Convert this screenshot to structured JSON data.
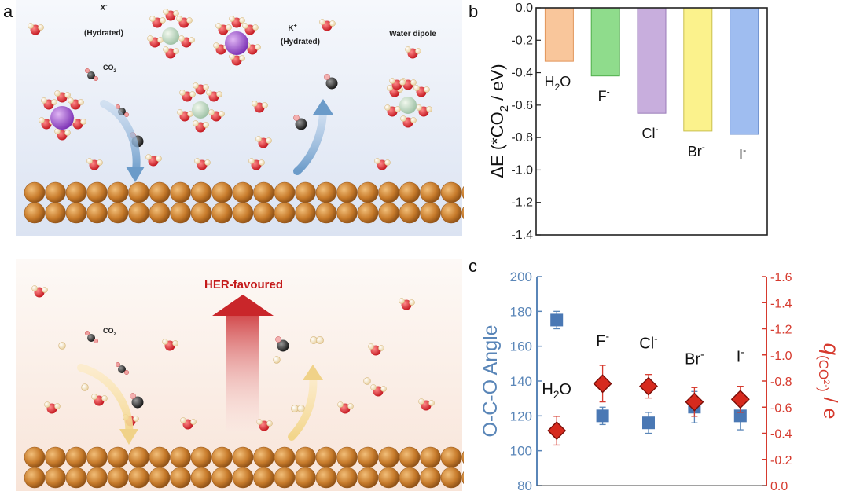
{
  "panel_labels": {
    "a": "a",
    "b": "b",
    "c": "c"
  },
  "scene_top": {
    "label_anion": "X",
    "label_anion_sup": "-",
    "label_anion_sub": "(Hydrated)",
    "label_cation": "K",
    "label_cation_sup": "+",
    "label_cation_sub": "(Hydrated)",
    "label_dipole": "Water dipole",
    "label_co2": "CO",
    "label_co2_sub": "2"
  },
  "scene_bottom": {
    "label_co2": "CO",
    "label_co2_sub": "2",
    "label_her": "HER-favoured"
  },
  "colors": {
    "top_bg": "#e8eef8",
    "bottom_bg": "#fbefe8",
    "copper": "#c47a2c",
    "h2o_bar": "#f9c69b",
    "f_bar": "#8fdc8c",
    "cl_bar": "#c8aedd",
    "br_bar": "#fbf28c",
    "i_bar": "#9fbdf0",
    "angle_axis": "#5a86b8",
    "charge_axis": "#d63a2e",
    "her_text": "#c41a1a"
  },
  "chart_data": [
    {
      "type": "bar",
      "panel": "b",
      "categories": [
        "H2O",
        "F-",
        "Cl-",
        "Br-",
        "I-"
      ],
      "category_labels": [
        {
          "base": "H",
          "sub": "2",
          "tail": "O",
          "sup": ""
        },
        {
          "base": "F",
          "sub": "",
          "tail": "",
          "sup": "-"
        },
        {
          "base": "Cl",
          "sub": "",
          "tail": "",
          "sup": "-"
        },
        {
          "base": "Br",
          "sub": "",
          "tail": "",
          "sup": "-"
        },
        {
          "base": "I",
          "sub": "",
          "tail": "",
          "sup": "-"
        }
      ],
      "values": [
        -0.33,
        -0.42,
        -0.65,
        -0.76,
        -0.78
      ],
      "ylabel_prefix": "ΔE (*CO",
      "ylabel_sub": "2",
      "ylabel_suffix": " / eV)",
      "ylim": [
        -1.4,
        0.0
      ],
      "yticks": [
        "0.0",
        "-0.2",
        "-0.4",
        "-0.6",
        "-0.8",
        "-1.0",
        "-1.2",
        "-1.4"
      ],
      "grid": false
    },
    {
      "type": "scatter",
      "panel": "c",
      "categories": [
        "H2O",
        "F-",
        "Cl-",
        "Br-",
        "I-"
      ],
      "category_labels": [
        {
          "base": "H",
          "sub": "2",
          "tail": "O",
          "sup": ""
        },
        {
          "base": "F",
          "sub": "",
          "tail": "",
          "sup": "-"
        },
        {
          "base": "Cl",
          "sub": "",
          "tail": "",
          "sup": "-"
        },
        {
          "base": "Br",
          "sub": "",
          "tail": "",
          "sup": "-"
        },
        {
          "base": "I",
          "sub": "",
          "tail": "",
          "sup": "-"
        }
      ],
      "series": [
        {
          "axis": "left",
          "values": [
            175,
            120,
            116,
            125,
            120
          ],
          "errors": [
            5,
            5,
            6,
            9,
            8
          ]
        },
        {
          "axis": "right",
          "values": [
            -0.42,
            -0.78,
            -0.76,
            -0.64,
            -0.66
          ],
          "errors": [
            0.11,
            0.14,
            0.09,
            0.11,
            0.1
          ]
        }
      ],
      "ylabel_left": "O-C-O Angle",
      "ylim_left": [
        80,
        200
      ],
      "yticks_left": [
        "80",
        "100",
        "120",
        "140",
        "160",
        "180",
        "200"
      ],
      "ylabel_right_q": "q",
      "ylabel_right_sub_open": "(CO",
      "ylabel_right_sub_sup": "2-",
      "ylabel_right_sub_close": ")",
      "ylabel_right_tail": " / e",
      "ylim_right": [
        0.0,
        -1.6
      ],
      "yticks_right": [
        "0.0",
        "-0.2",
        "-0.4",
        "-0.6",
        "-0.8",
        "-1.0",
        "-1.2",
        "-1.4",
        "-1.6"
      ],
      "grid": false
    }
  ]
}
